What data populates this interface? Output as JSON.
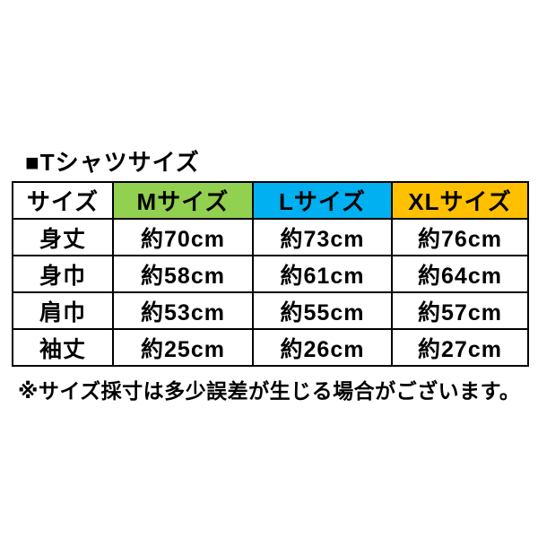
{
  "title": "■Tシャツサイズ",
  "note": "※サイズ採寸は多少誤差が生じる場合がございます。",
  "colors": {
    "m_header_bg": "#92D050",
    "l_header_bg": "#00B0F0",
    "xl_header_bg": "#FFC000",
    "border": "#000000",
    "text": "#000000",
    "background": "#FFFFFF"
  },
  "table": {
    "headers": [
      "サイズ",
      "Mサイズ",
      "Lサイズ",
      "XLサイズ"
    ],
    "header_bg": [
      "#FFFFFF",
      "#92D050",
      "#00B0F0",
      "#FFC000"
    ],
    "rows": [
      {
        "label": "身丈",
        "values": [
          "約70cm",
          "約73cm",
          "約76cm"
        ]
      },
      {
        "label": "身巾",
        "values": [
          "約58cm",
          "約61cm",
          "約64cm"
        ]
      },
      {
        "label": "肩巾",
        "values": [
          "約53cm",
          "約55cm",
          "約57cm"
        ]
      },
      {
        "label": "袖丈",
        "values": [
          "約25cm",
          "約26cm",
          "約27cm"
        ]
      }
    ]
  },
  "chart_data": {
    "type": "table",
    "title": "Tシャツサイズ",
    "columns": [
      "サイズ",
      "Mサイズ",
      "Lサイズ",
      "XLサイズ"
    ],
    "rows": [
      [
        "身丈",
        "約70cm",
        "約73cm",
        "約76cm"
      ],
      [
        "身巾",
        "約58cm",
        "約61cm",
        "約64cm"
      ],
      [
        "肩巾",
        "約53cm",
        "約55cm",
        "約57cm"
      ],
      [
        "袖丈",
        "約25cm",
        "約26cm",
        "約27cm"
      ]
    ],
    "values_numeric_cm": {
      "身丈": [
        70,
        73,
        76
      ],
      "身巾": [
        58,
        61,
        64
      ],
      "肩巾": [
        53,
        55,
        57
      ],
      "袖丈": [
        25,
        26,
        27
      ]
    },
    "footnote": "※サイズ採寸は多少誤差が生じる場合がございます。"
  }
}
